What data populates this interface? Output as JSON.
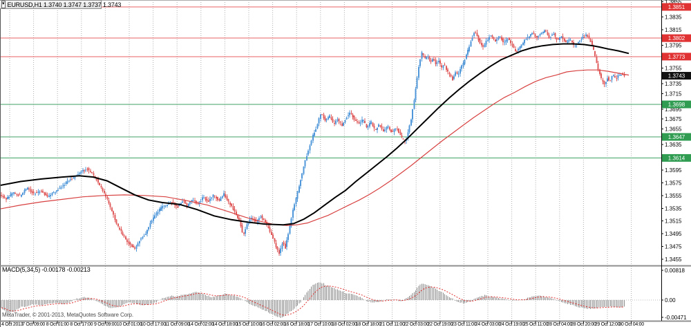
{
  "window": {
    "title": "EURUSD,H1  1.3740 1.3747 1.3737 1.3743",
    "symbol": "EURUSD",
    "timeframe": "H1",
    "open": "1.3740",
    "high": "1.3747",
    "low": "1.3737",
    "close": "1.3743"
  },
  "indicator": {
    "label": "MACD(5,34,5) -0.00178 -0.00213",
    "name": "MACD",
    "params": "5,34,5",
    "value_main": "-0.00178",
    "value_signal": "-0.00213"
  },
  "watermark": "MetaTrader, © 2001-2013, MetaQuotes Software Corp.",
  "colors": {
    "candle_up": "#4f97d8",
    "candle_down": "#e05c5c",
    "resistance_line": "#e86060",
    "support_line": "#3da263",
    "resistance_badge": "#e03232",
    "support_badge": "#2f9c52",
    "current_badge": "#111111",
    "ma_black": "#000000",
    "ma_red": "#d84040",
    "macd_bar": "#8a8a8a",
    "macd_signal": "#e03030",
    "grid": "#adadad"
  },
  "chart_data": {
    "type": "candlestick+macd",
    "title": "EURUSD,H1",
    "price_axis_ticks": [
      "1.3855",
      "1.3835",
      "1.3815",
      "1.3795",
      "1.3755",
      "1.3735",
      "1.3715",
      "1.3695",
      "1.3675",
      "1.3655",
      "1.3635",
      "1.3595",
      "1.3575",
      "1.3555",
      "1.3535",
      "1.3515",
      "1.3495",
      "1.3475",
      "1.3455"
    ],
    "levels": [
      {
        "price": "1.3851",
        "type": "resistance"
      },
      {
        "price": "1.3802",
        "type": "resistance"
      },
      {
        "price": "1.3773",
        "type": "resistance"
      },
      {
        "price": "1.3743",
        "type": "current"
      },
      {
        "price": "1.3698",
        "type": "support"
      },
      {
        "price": "1.3647",
        "type": "support"
      },
      {
        "price": "1.3614",
        "type": "support"
      }
    ],
    "time_labels": [
      "4 Oct 2013",
      "7 Oct 09:00",
      "8 Oct 01:00",
      "8 Oct 17:00",
      "9 Oct 09:00",
      "10 Oct 01:00",
      "10 Oct 17:00",
      "11 Oct 09:00",
      "14 Oct 02:00",
      "14 Oct 18:00",
      "15 Oct 10:00",
      "16 Oct 02:00",
      "16 Oct 18:00",
      "17 Oct 10:00",
      "18 Oct 02:00",
      "18 Oct 18:00",
      "21 Oct 11:00",
      "22 Oct 03:00",
      "22 Oct 19:00",
      "23 Oct 11:00",
      "24 Oct 03:00",
      "24 Oct 19:00",
      "25 Oct 11:00",
      "28 Oct 04:00",
      "28 Oct 20:00",
      "29 Oct 12:00",
      "30 Oct 04:00"
    ],
    "price_path": [
      [
        0,
        1.3558
      ],
      [
        10,
        1.3549
      ],
      [
        20,
        1.356
      ],
      [
        30,
        1.3554
      ],
      [
        40,
        1.3567
      ],
      [
        50,
        1.3558
      ],
      [
        60,
        1.3563
      ],
      [
        70,
        1.3553
      ],
      [
        80,
        1.356
      ],
      [
        90,
        1.3569
      ],
      [
        100,
        1.3578
      ],
      [
        110,
        1.3585
      ],
      [
        120,
        1.3593
      ],
      [
        128,
        1.3597
      ],
      [
        135,
        1.3588
      ],
      [
        142,
        1.3578
      ],
      [
        150,
        1.3563
      ],
      [
        158,
        1.3545
      ],
      [
        165,
        1.3525
      ],
      [
        172,
        1.3506
      ],
      [
        180,
        1.3491
      ],
      [
        188,
        1.348
      ],
      [
        196,
        1.3471
      ],
      [
        205,
        1.3488
      ],
      [
        212,
        1.3495
      ],
      [
        220,
        1.3515
      ],
      [
        228,
        1.3528
      ],
      [
        235,
        1.3536
      ],
      [
        242,
        1.3541
      ],
      [
        250,
        1.3545
      ],
      [
        258,
        1.3536
      ],
      [
        265,
        1.3547
      ],
      [
        272,
        1.3539
      ],
      [
        280,
        1.3549
      ],
      [
        288,
        1.3541
      ],
      [
        295,
        1.3553
      ],
      [
        302,
        1.3545
      ],
      [
        310,
        1.3556
      ],
      [
        318,
        1.3547
      ],
      [
        325,
        1.3558
      ],
      [
        332,
        1.3545
      ],
      [
        340,
        1.3531
      ],
      [
        348,
        1.3515
      ],
      [
        353,
        1.3493
      ],
      [
        358,
        1.3509
      ],
      [
        365,
        1.352
      ],
      [
        372,
        1.3513
      ],
      [
        378,
        1.3523
      ],
      [
        384,
        1.3515
      ],
      [
        390,
        1.3504
      ],
      [
        395,
        1.3491
      ],
      [
        400,
        1.3477
      ],
      [
        405,
        1.3463
      ],
      [
        410,
        1.3482
      ],
      [
        414,
        1.3473
      ],
      [
        418,
        1.3493
      ],
      [
        422,
        1.3515
      ],
      [
        426,
        1.3536
      ],
      [
        430,
        1.3553
      ],
      [
        434,
        1.3571
      ],
      [
        438,
        1.3588
      ],
      [
        442,
        1.3607
      ],
      [
        446,
        1.3621
      ],
      [
        450,
        1.3636
      ],
      [
        454,
        1.3649
      ],
      [
        458,
        1.3658
      ],
      [
        462,
        1.3672
      ],
      [
        466,
        1.3685
      ],
      [
        472,
        1.3672
      ],
      [
        478,
        1.368
      ],
      [
        484,
        1.3667
      ],
      [
        490,
        1.3675
      ],
      [
        496,
        1.3664
      ],
      [
        502,
        1.3677
      ],
      [
        508,
        1.3686
      ],
      [
        514,
        1.3675
      ],
      [
        520,
        1.3667
      ],
      [
        526,
        1.3675
      ],
      [
        532,
        1.3662
      ],
      [
        538,
        1.3671
      ],
      [
        544,
        1.3658
      ],
      [
        550,
        1.3667
      ],
      [
        556,
        1.3656
      ],
      [
        562,
        1.3664
      ],
      [
        568,
        1.3654
      ],
      [
        575,
        1.3661
      ],
      [
        582,
        1.3647
      ],
      [
        588,
        1.3639
      ],
      [
        592,
        1.3656
      ],
      [
        596,
        1.3675
      ],
      [
        600,
        1.3701
      ],
      [
        604,
        1.3734
      ],
      [
        608,
        1.3764
      ],
      [
        612,
        1.378
      ],
      [
        616,
        1.377
      ],
      [
        620,
        1.3775
      ],
      [
        624,
        1.3764
      ],
      [
        628,
        1.3771
      ],
      [
        632,
        1.376
      ],
      [
        636,
        1.3766
      ],
      [
        640,
        1.3756
      ],
      [
        644,
        1.3762
      ],
      [
        648,
        1.3751
      ],
      [
        652,
        1.3745
      ],
      [
        656,
        1.3737
      ],
      [
        660,
        1.3748
      ],
      [
        664,
        1.3743
      ],
      [
        668,
        1.3756
      ],
      [
        672,
        1.3764
      ],
      [
        676,
        1.3775
      ],
      [
        680,
        1.3788
      ],
      [
        684,
        1.3802
      ],
      [
        688,
        1.3813
      ],
      [
        694,
        1.3799
      ],
      [
        700,
        1.3788
      ],
      [
        706,
        1.3799
      ],
      [
        712,
        1.3808
      ],
      [
        718,
        1.3797
      ],
      [
        724,
        1.3805
      ],
      [
        730,
        1.3795
      ],
      [
        736,
        1.3802
      ],
      [
        742,
        1.3791
      ],
      [
        748,
        1.378
      ],
      [
        754,
        1.3788
      ],
      [
        760,
        1.3799
      ],
      [
        766,
        1.3805
      ],
      [
        772,
        1.3811
      ],
      [
        778,
        1.3802
      ],
      [
        784,
        1.381
      ],
      [
        790,
        1.3814
      ],
      [
        796,
        1.3803
      ],
      [
        802,
        1.381
      ],
      [
        808,
        1.3799
      ],
      [
        814,
        1.3805
      ],
      [
        820,
        1.3795
      ],
      [
        826,
        1.3801
      ],
      [
        832,
        1.379
      ],
      [
        838,
        1.3797
      ],
      [
        844,
        1.3803
      ],
      [
        850,
        1.3808
      ],
      [
        856,
        1.3797
      ],
      [
        860,
        1.3784
      ],
      [
        864,
        1.3766
      ],
      [
        868,
        1.3749
      ],
      [
        872,
        1.3736
      ],
      [
        876,
        1.3729
      ],
      [
        880,
        1.374
      ],
      [
        884,
        1.3734
      ],
      [
        888,
        1.3745
      ],
      [
        892,
        1.3738
      ],
      [
        896,
        1.3743
      ],
      [
        900,
        1.3746
      ],
      [
        905,
        1.3743
      ]
    ],
    "ma_black_path": [
      [
        0,
        1.3571
      ],
      [
        30,
        1.3577
      ],
      [
        60,
        1.3581
      ],
      [
        90,
        1.3584
      ],
      [
        115,
        1.3586
      ],
      [
        135,
        1.3584
      ],
      [
        155,
        1.3578
      ],
      [
        175,
        1.3567
      ],
      [
        195,
        1.3556
      ],
      [
        215,
        1.3548
      ],
      [
        235,
        1.3544
      ],
      [
        260,
        1.3541
      ],
      [
        285,
        1.3533
      ],
      [
        310,
        1.3523
      ],
      [
        335,
        1.3517
      ],
      [
        360,
        1.3513
      ],
      [
        385,
        1.351
      ],
      [
        410,
        1.3509
      ],
      [
        425,
        1.3511
      ],
      [
        440,
        1.3518
      ],
      [
        455,
        1.3528
      ],
      [
        470,
        1.354
      ],
      [
        485,
        1.3552
      ],
      [
        500,
        1.3563
      ],
      [
        515,
        1.3577
      ],
      [
        530,
        1.359
      ],
      [
        545,
        1.3603
      ],
      [
        560,
        1.3616
      ],
      [
        575,
        1.363
      ],
      [
        590,
        1.3645
      ],
      [
        605,
        1.3661
      ],
      [
        620,
        1.3677
      ],
      [
        635,
        1.3693
      ],
      [
        650,
        1.3708
      ],
      [
        665,
        1.3722
      ],
      [
        680,
        1.3735
      ],
      [
        695,
        1.3747
      ],
      [
        710,
        1.3758
      ],
      [
        725,
        1.3768
      ],
      [
        740,
        1.3775
      ],
      [
        755,
        1.3782
      ],
      [
        770,
        1.3787
      ],
      [
        785,
        1.379
      ],
      [
        800,
        1.3792
      ],
      [
        815,
        1.3793
      ],
      [
        830,
        1.3793
      ],
      [
        845,
        1.3792
      ],
      [
        858,
        1.379
      ],
      [
        868,
        1.3788
      ],
      [
        880,
        1.3785
      ],
      [
        895,
        1.3782
      ],
      [
        910,
        1.3778
      ]
    ],
    "ma_red_path": [
      [
        0,
        1.3534
      ],
      [
        30,
        1.354
      ],
      [
        60,
        1.3545
      ],
      [
        90,
        1.3549
      ],
      [
        120,
        1.3553
      ],
      [
        150,
        1.3555
      ],
      [
        180,
        1.3556
      ],
      [
        210,
        1.3555
      ],
      [
        240,
        1.3553
      ],
      [
        270,
        1.3547
      ],
      [
        300,
        1.354
      ],
      [
        330,
        1.353
      ],
      [
        355,
        1.3521
      ],
      [
        375,
        1.3515
      ],
      [
        395,
        1.351
      ],
      [
        415,
        1.3508
      ],
      [
        430,
        1.3509
      ],
      [
        445,
        1.3512
      ],
      [
        460,
        1.3518
      ],
      [
        475,
        1.3524
      ],
      [
        490,
        1.3532
      ],
      [
        505,
        1.354
      ],
      [
        520,
        1.3548
      ],
      [
        535,
        1.3557
      ],
      [
        550,
        1.3567
      ],
      [
        565,
        1.3578
      ],
      [
        580,
        1.359
      ],
      [
        595,
        1.3602
      ],
      [
        610,
        1.3615
      ],
      [
        625,
        1.3628
      ],
      [
        640,
        1.3641
      ],
      [
        655,
        1.3653
      ],
      [
        670,
        1.3665
      ],
      [
        685,
        1.3677
      ],
      [
        700,
        1.3688
      ],
      [
        715,
        1.3699
      ],
      [
        730,
        1.3709
      ],
      [
        745,
        1.3717
      ],
      [
        760,
        1.3726
      ],
      [
        775,
        1.3734
      ],
      [
        790,
        1.374
      ],
      [
        805,
        1.3744
      ],
      [
        820,
        1.3749
      ],
      [
        835,
        1.3751
      ],
      [
        850,
        1.3752
      ],
      [
        865,
        1.3752
      ],
      [
        880,
        1.375
      ],
      [
        895,
        1.3747
      ],
      [
        910,
        1.3744
      ]
    ],
    "macd": {
      "axis_labels": {
        "top": "0.00818",
        "zero": "0.00",
        "bottom": "-0.00471"
      },
      "main_path": [
        [
          0,
          -0.00186
        ],
        [
          10,
          -0.00372
        ],
        [
          20,
          -0.00298
        ],
        [
          30,
          -0.00186
        ],
        [
          40,
          -0.00149
        ],
        [
          50,
          -0.00112
        ],
        [
          60,
          -0.0013
        ],
        [
          70,
          -0.00093
        ],
        [
          80,
          -0.00074
        ],
        [
          90,
          -0.00112
        ],
        [
          100,
          -0.00056
        ],
        [
          110,
          0.00037
        ],
        [
          120,
          0.00074
        ],
        [
          130,
          0.00056
        ],
        [
          140,
          -0.00037
        ],
        [
          150,
          -0.00149
        ],
        [
          160,
          -0.00223
        ],
        [
          170,
          -0.00186
        ],
        [
          178,
          -0.00112
        ],
        [
          185,
          -0.00056
        ],
        [
          195,
          -0.00093
        ],
        [
          205,
          -0.00149
        ],
        [
          215,
          -0.00112
        ],
        [
          225,
          -0.00056
        ],
        [
          235,
          0.00056
        ],
        [
          245,
          0.00112
        ],
        [
          255,
          0.00093
        ],
        [
          265,
          0.00149
        ],
        [
          275,
          0.00186
        ],
        [
          285,
          0.00223
        ],
        [
          295,
          0.00149
        ],
        [
          305,
          0.00074
        ],
        [
          315,
          0.00112
        ],
        [
          325,
          0.00167
        ],
        [
          335,
          0.0013
        ],
        [
          345,
          0.00074
        ],
        [
          355,
          -0.00056
        ],
        [
          365,
          -0.00149
        ],
        [
          375,
          -0.00223
        ],
        [
          385,
          -0.00298
        ],
        [
          395,
          -0.00409
        ],
        [
          405,
          -0.00484
        ],
        [
          410,
          -0.00446
        ],
        [
          415,
          -0.00372
        ],
        [
          425,
          -0.00223
        ],
        [
          435,
          -0.00037
        ],
        [
          440,
          0.00112
        ],
        [
          445,
          0.0026
        ],
        [
          450,
          0.00372
        ],
        [
          455,
          0.00446
        ],
        [
          460,
          0.00484
        ],
        [
          465,
          0.00465
        ],
        [
          470,
          0.00409
        ],
        [
          475,
          0.00372
        ],
        [
          480,
          0.00335
        ],
        [
          485,
          0.00298
        ],
        [
          490,
          0.0026
        ],
        [
          495,
          0.00223
        ],
        [
          500,
          0.00186
        ],
        [
          510,
          0.00149
        ],
        [
          520,
          0.00074
        ],
        [
          530,
          -0.00019
        ],
        [
          540,
          -0.00074
        ],
        [
          550,
          -0.00037
        ],
        [
          560,
          0.00019
        ],
        [
          570,
          0.00019
        ],
        [
          580,
          -0.00037
        ],
        [
          590,
          0.00074
        ],
        [
          595,
          0.00149
        ],
        [
          600,
          0.0026
        ],
        [
          605,
          0.00372
        ],
        [
          610,
          0.00446
        ],
        [
          615,
          0.00428
        ],
        [
          620,
          0.0039
        ],
        [
          630,
          0.00298
        ],
        [
          640,
          0.00186
        ],
        [
          650,
          0.00074
        ],
        [
          660,
          -0.00037
        ],
        [
          670,
          -0.00093
        ],
        [
          680,
          -0.00037
        ],
        [
          690,
          0.00074
        ],
        [
          700,
          0.0013
        ],
        [
          710,
          0.00093
        ],
        [
          720,
          0.00056
        ],
        [
          730,
          0.00019
        ],
        [
          740,
          -0.00019
        ],
        [
          750,
          -0.00019
        ],
        [
          760,
          0.00037
        ],
        [
          770,
          0.00093
        ],
        [
          780,
          0.00112
        ],
        [
          790,
          0.00074
        ],
        [
          800,
          0.00037
        ],
        [
          810,
          -0.00037
        ],
        [
          820,
          -0.00093
        ],
        [
          830,
          -0.00149
        ],
        [
          840,
          -0.00205
        ],
        [
          850,
          -0.00242
        ],
        [
          860,
          -0.00223
        ],
        [
          870,
          -0.00186
        ],
        [
          880,
          -0.00177
        ],
        [
          890,
          -0.00186
        ],
        [
          900,
          -0.00178
        ],
        [
          905,
          -0.00178
        ]
      ]
    }
  }
}
